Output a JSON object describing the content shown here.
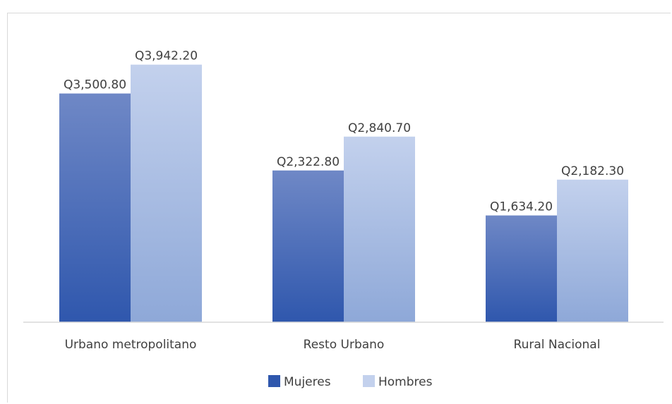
{
  "chart_data": {
    "type": "bar",
    "categories": [
      "Urbano metropolitano",
      "Resto Urbano",
      "Rural Nacional"
    ],
    "series": [
      {
        "name": "Mujeres",
        "values": [
          3500.8,
          2322.8,
          1634.2
        ],
        "labels": [
          "Q3,500.80",
          "Q2,322.80",
          "Q1,634.20"
        ],
        "color_top": "#6f88c6",
        "color_bottom": "#2f57ad"
      },
      {
        "name": "Hombres",
        "values": [
          3942.2,
          2840.7,
          2182.3
        ],
        "labels": [
          "Q3,942.20",
          "Q2,840.70",
          "Q2,182.30"
        ],
        "color_top": "#c3d1ed",
        "color_bottom": "#8ea8d8"
      }
    ],
    "ylim": [
      0,
      4500
    ],
    "grid": false,
    "legend_position": "bottom"
  }
}
